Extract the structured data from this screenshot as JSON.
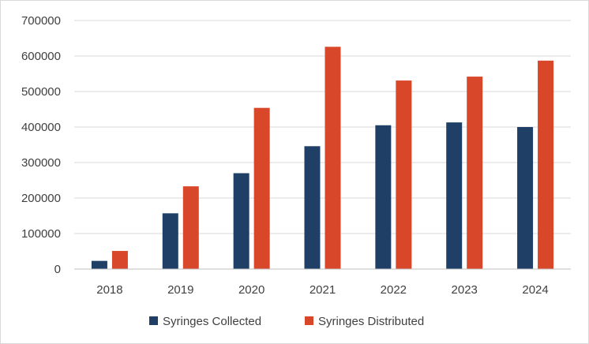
{
  "chart_data": {
    "type": "bar",
    "title": "",
    "xlabel": "",
    "ylabel": "",
    "categories": [
      "2018",
      "2019",
      "2020",
      "2021",
      "2022",
      "2023",
      "2024"
    ],
    "series": [
      {
        "name": "Syringes Collected",
        "color": "#1f3f66",
        "values": [
          23000,
          157000,
          270000,
          346000,
          405000,
          413000,
          400000
        ]
      },
      {
        "name": "Syringes Distributed",
        "color": "#d9472b",
        "values": [
          51000,
          233000,
          454000,
          626000,
          531000,
          542000,
          587000
        ]
      }
    ],
    "ylim": [
      0,
      700000
    ],
    "yticks": [
      "0",
      "100000",
      "200000",
      "300000",
      "400000",
      "500000",
      "600000",
      "700000"
    ],
    "grid": true,
    "legend_position": "bottom"
  }
}
